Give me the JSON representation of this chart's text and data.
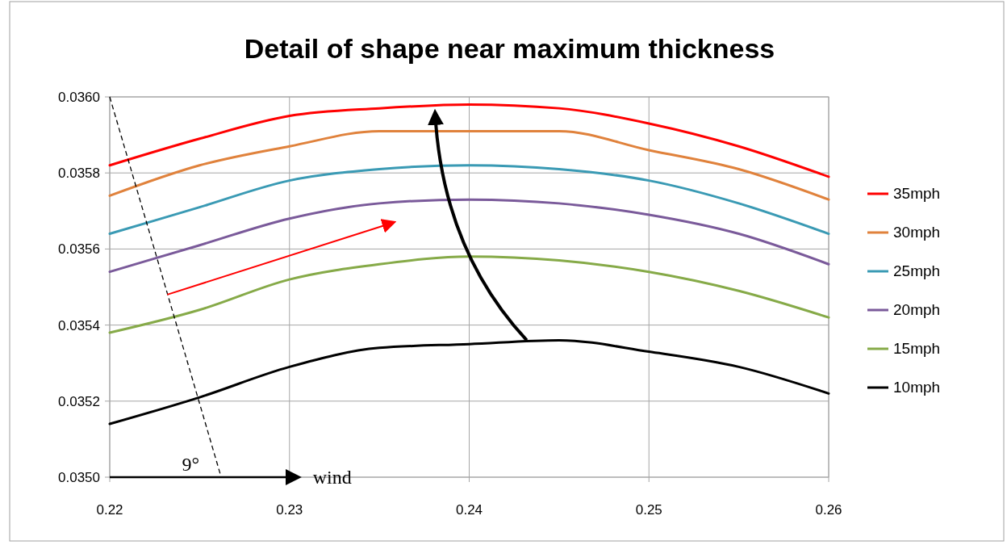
{
  "chart_data": {
    "type": "line",
    "title": "Detail of shape near maximum thickness",
    "x": [
      0.22,
      0.225,
      0.23,
      0.235,
      0.24,
      0.245,
      0.25,
      0.255,
      0.26
    ],
    "series": [
      {
        "name": "35mph",
        "color": "#ff0000",
        "values": [
          0.03582,
          0.03589,
          0.03595,
          0.03597,
          0.03598,
          0.03597,
          0.03593,
          0.03587,
          0.03579
        ]
      },
      {
        "name": "30mph",
        "color": "#e0823c",
        "values": [
          0.03574,
          0.03582,
          0.03587,
          0.03591,
          0.03591,
          0.03591,
          0.03586,
          0.03581,
          0.03573
        ]
      },
      {
        "name": "25mph",
        "color": "#3a9ab4",
        "values": [
          0.03564,
          0.03571,
          0.03578,
          0.03581,
          0.03582,
          0.03581,
          0.03578,
          0.03572,
          0.03564
        ]
      },
      {
        "name": "20mph",
        "color": "#7a5a9a",
        "values": [
          0.03554,
          0.03561,
          0.03568,
          0.03572,
          0.03573,
          0.03572,
          0.03569,
          0.03564,
          0.03556
        ]
      },
      {
        "name": "15mph",
        "color": "#86aa48",
        "values": [
          0.03538,
          0.03544,
          0.03552,
          0.03556,
          0.03558,
          0.03557,
          0.03554,
          0.03549,
          0.03542
        ]
      },
      {
        "name": "10mph",
        "color": "#000000",
        "values": [
          0.03514,
          0.03521,
          0.03529,
          0.03534,
          0.03535,
          0.03536,
          0.03533,
          0.03529,
          0.03522
        ]
      }
    ],
    "xlim": [
      0.22,
      0.26
    ],
    "xticks": [
      0.22,
      0.23,
      0.24,
      0.25,
      0.26
    ],
    "ylim": [
      0.035,
      0.036
    ],
    "yticks": [
      {
        "value": 0.035,
        "label": "0.0350"
      },
      {
        "value": 0.0352,
        "label": "0.0352"
      },
      {
        "value": 0.0354,
        "label": "0.0354"
      },
      {
        "value": 0.0356,
        "label": "0.0356"
      },
      {
        "value": 0.0358,
        "label": "0.0358"
      },
      {
        "value": 0.036,
        "label": "0.0360"
      }
    ],
    "grid": true,
    "legend": "right",
    "marker": "none",
    "line_style": "solid",
    "annotations": [
      "9°",
      "wind"
    ]
  }
}
